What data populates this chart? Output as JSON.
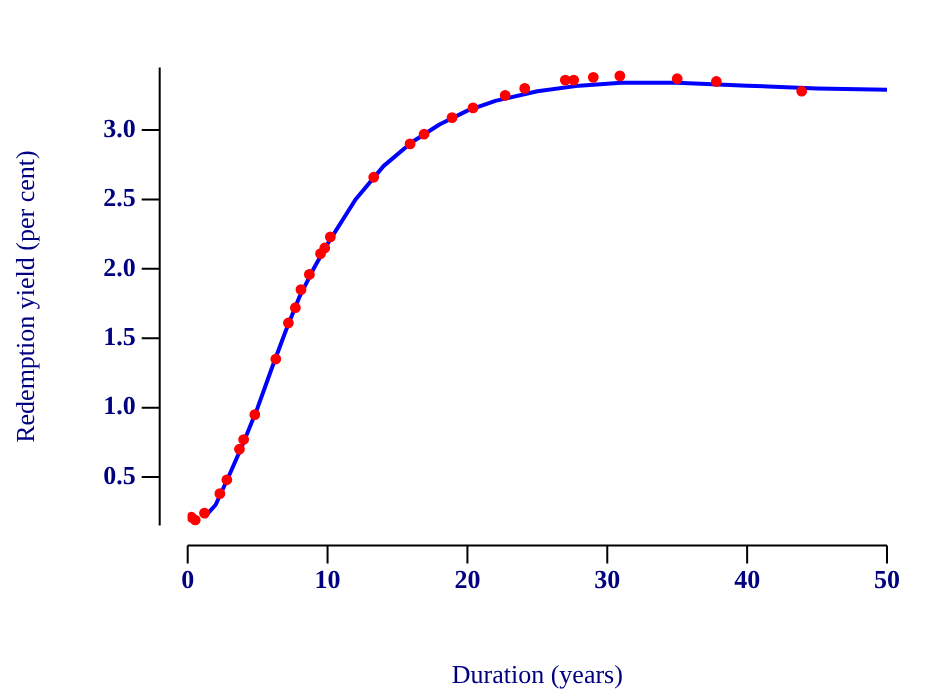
{
  "chart_data": {
    "type": "scatter",
    "xlabel": "Duration (years)",
    "ylabel": "Redemption yield (per cent)",
    "xlim": [
      0,
      50
    ],
    "ylim": [
      0.15,
      3.45
    ],
    "xticks": [
      0,
      10,
      20,
      30,
      40,
      50
    ],
    "yticks": [
      {
        "value": 0.5,
        "label": "0.5"
      },
      {
        "value": 1,
        "label": "1.0"
      },
      {
        "value": 1.5,
        "label": "1.5"
      },
      {
        "value": 2,
        "label": "2.0"
      },
      {
        "value": 2.5,
        "label": "2.5"
      },
      {
        "value": 3,
        "label": "3.0"
      }
    ],
    "grid": false,
    "legend": false,
    "series": [
      {
        "marker": "circle",
        "color": "#ff0000",
        "x": [
          0.27,
          0.54,
          1.2,
          2.3,
          2.8,
          3.7,
          4.0,
          4.8,
          6.3,
          7.2,
          7.7,
          8.1,
          8.7,
          9.5,
          9.8,
          10.2,
          13.3,
          15.9,
          16.9,
          18.9,
          20.4,
          22.7,
          24.1,
          27.0,
          27.6,
          29.0,
          30.9,
          35.0,
          37.8,
          43.9
        ],
        "values": [
          0.21,
          0.19,
          0.24,
          0.38,
          0.48,
          0.7,
          0.77,
          0.95,
          1.35,
          1.61,
          1.72,
          1.85,
          1.96,
          2.11,
          2.15,
          2.23,
          2.66,
          2.9,
          2.97,
          3.09,
          3.16,
          3.25,
          3.3,
          3.36,
          3.36,
          3.38,
          3.39,
          3.37,
          3.35,
          3.28
        ]
      },
      {
        "type": "line",
        "marker": "none",
        "color": "#0000ff",
        "line_style": "solid",
        "x": [
          1.2,
          2,
          3,
          4,
          5,
          6,
          7,
          8,
          9,
          10,
          12,
          14,
          16,
          18,
          20,
          22,
          25,
          28,
          31,
          35,
          40,
          45,
          50
        ],
        "values": [
          0.21,
          0.3,
          0.52,
          0.75,
          1.0,
          1.28,
          1.55,
          1.8,
          2.0,
          2.18,
          2.5,
          2.74,
          2.91,
          3.04,
          3.14,
          3.21,
          3.28,
          3.32,
          3.34,
          3.34,
          3.32,
          3.3,
          3.29
        ]
      }
    ]
  }
}
